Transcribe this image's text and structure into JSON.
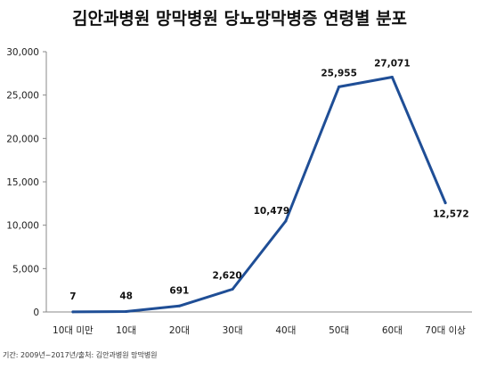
{
  "chart_data": {
    "type": "line",
    "title": "김안과병원 망막병원 당뇨망막병증 연령별 분포",
    "categories": [
      "10대 미만",
      "10대",
      "20대",
      "30대",
      "40대",
      "50대",
      "60대",
      "70대 이상"
    ],
    "series": [
      {
        "values": [
          7,
          48,
          691,
          2620,
          10479,
          25955,
          27071,
          12572
        ]
      }
    ],
    "data_labels": [
      "7",
      "48",
      "691",
      "2,620",
      "10,479",
      "25,955",
      "27,071",
      "12,572"
    ],
    "ylim": [
      0,
      30000
    ],
    "yticks": [
      0,
      5000,
      10000,
      15000,
      20000,
      25000,
      30000
    ],
    "ytick_labels": [
      "0",
      "5,000",
      "10,000",
      "15,000",
      "20,000",
      "25,000",
      "30,000"
    ],
    "xlabel": "",
    "ylabel": "",
    "grid": false,
    "line_color": "#1f4e96"
  },
  "source_note": "기간: 2009년~2017년/출처:  김안과병원  망막병원"
}
